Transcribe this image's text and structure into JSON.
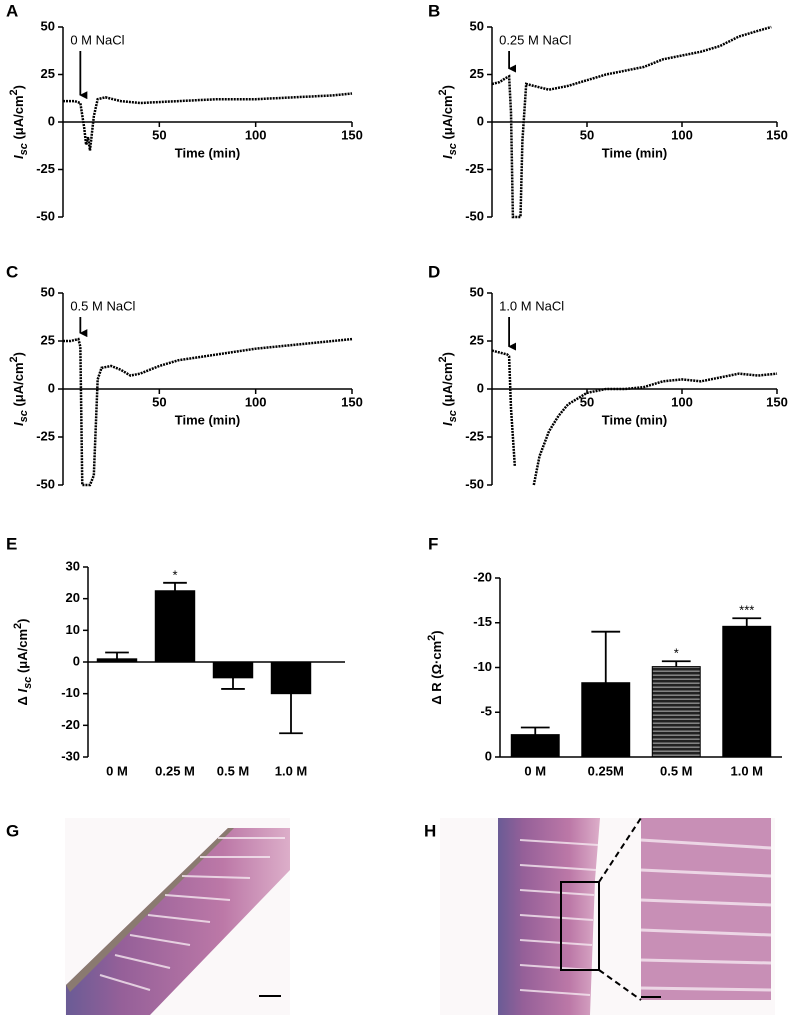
{
  "chart_data": [
    {
      "type": "line",
      "panel": "A",
      "x": [
        0,
        3,
        6,
        9,
        11,
        12,
        13,
        14,
        16,
        18,
        22,
        30,
        40,
        60,
        80,
        100,
        120,
        140,
        150
      ],
      "values": [
        11,
        11,
        11,
        10,
        -3,
        -12,
        -8,
        -15,
        3,
        12,
        13,
        11,
        10,
        11,
        12,
        12,
        13,
        14,
        15
      ],
      "color": "#000000",
      "xlim": [
        0,
        150
      ],
      "xticks": [
        50,
        100,
        150
      ],
      "ylim": [
        -50,
        50
      ],
      "yticks": [
        -50,
        -25,
        0,
        25,
        50
      ],
      "xlabel": "Time (min)",
      "ylabel": [
        {
          "text": "I",
          "style": "italic"
        },
        {
          "text": "sc",
          "style": "sub"
        },
        {
          "text": " (μA/cm"
        },
        {
          "text": "2",
          "style": "sup"
        },
        {
          "text": ")"
        }
      ],
      "annotation": {
        "text": "0 M NaCl",
        "x": 9,
        "y": 12
      }
    },
    {
      "type": "line",
      "panel": "B",
      "x": [
        0,
        4,
        7,
        9,
        10,
        11,
        13,
        15,
        16,
        18,
        22,
        30,
        40,
        50,
        60,
        70,
        80,
        90,
        100,
        110,
        120,
        130,
        140,
        147
      ],
      "values": [
        20,
        21,
        23,
        24,
        5,
        -50,
        -50,
        -50,
        -10,
        20,
        19,
        17,
        19,
        22,
        25,
        27,
        29,
        33,
        35,
        37,
        40,
        45,
        48,
        50
      ],
      "color": "#000000",
      "xlim": [
        0,
        150
      ],
      "xticks": [
        50,
        100,
        150
      ],
      "ylim": [
        -50,
        50
      ],
      "yticks": [
        -50,
        -25,
        0,
        25,
        50
      ],
      "xlabel": "Time (min)",
      "ylabel": [
        {
          "text": "I",
          "style": "italic"
        },
        {
          "text": "sc",
          "style": "sub"
        },
        {
          "text": " (μA/cm"
        },
        {
          "text": "2",
          "style": "sup"
        },
        {
          "text": ")"
        }
      ],
      "annotation": {
        "text": "0.25 M NaCl",
        "x": 9,
        "y": 26
      }
    },
    {
      "type": "line",
      "panel": "C",
      "x": [
        0,
        4,
        8,
        9,
        10,
        12,
        14,
        16,
        17,
        18,
        20,
        25,
        30,
        35,
        40,
        50,
        60,
        80,
        100,
        120,
        140,
        150
      ],
      "values": [
        25,
        25,
        26,
        22,
        -50,
        -50,
        -50,
        -45,
        -20,
        5,
        11,
        12,
        10,
        7,
        8,
        12,
        15,
        18,
        21,
        23,
        25,
        26
      ],
      "color": "#000000",
      "xlim": [
        0,
        150
      ],
      "xticks": [
        50,
        100,
        150
      ],
      "ylim": [
        -50,
        50
      ],
      "yticks": [
        -50,
        -25,
        0,
        25,
        50
      ],
      "xlabel": "Time (min)",
      "ylabel": [
        {
          "text": "I",
          "style": "italic"
        },
        {
          "text": "sc",
          "style": "sub"
        },
        {
          "text": " (μA/cm"
        },
        {
          "text": "2",
          "style": "sup"
        },
        {
          "text": ")"
        }
      ],
      "annotation": {
        "text": "0.5 M NaCl",
        "x": 9,
        "y": 27
      }
    },
    {
      "type": "line",
      "panel": "D",
      "x": [
        0,
        4,
        8,
        9,
        10,
        12,
        20,
        22,
        25,
        30,
        35,
        40,
        50,
        60,
        70,
        80,
        90,
        100,
        110,
        120,
        130,
        140,
        150
      ],
      "values": [
        20,
        19,
        18,
        17,
        -10,
        -40,
        null,
        -50,
        -35,
        -22,
        -14,
        -8,
        -2,
        0,
        0,
        1,
        4,
        5,
        4,
        6,
        8,
        7,
        8
      ],
      "color": "#000000",
      "xlim": [
        0,
        150
      ],
      "xticks": [
        50,
        100,
        150
      ],
      "ylim": [
        -50,
        50
      ],
      "yticks": [
        -50,
        -25,
        0,
        25,
        50
      ],
      "xlabel": "Time (min)",
      "ylabel": [
        {
          "text": "I",
          "style": "italic"
        },
        {
          "text": "sc",
          "style": "sub"
        },
        {
          "text": " (μA/cm"
        },
        {
          "text": "2",
          "style": "sup"
        },
        {
          "text": ")"
        }
      ],
      "annotation": {
        "text": "1.0 M NaCl",
        "x": 9,
        "y": 20
      }
    },
    {
      "type": "bar",
      "panel": "E",
      "categories": [
        "0 M",
        "0.25 M",
        "0.5 M",
        "1.0 M"
      ],
      "values": [
        1,
        22.5,
        -5,
        -10
      ],
      "errors": [
        2,
        2.5,
        3.5,
        12.5
      ],
      "significance": [
        null,
        "*",
        null,
        null
      ],
      "color": "#000000",
      "patterns": [
        "solid",
        "solid",
        "solid",
        "solid"
      ],
      "ylim": [
        -30,
        30
      ],
      "yticks": [
        -30,
        -20,
        -10,
        0,
        10,
        20,
        30
      ],
      "ylabel": [
        {
          "text": "Δ "
        },
        {
          "text": "I",
          "style": "italic"
        },
        {
          "text": "sc",
          "style": "sub"
        },
        {
          "text": " (μA/cm"
        },
        {
          "text": "2",
          "style": "sup"
        },
        {
          "text": ")"
        }
      ]
    },
    {
      "type": "bar",
      "panel": "F",
      "categories": [
        "0 M",
        "0.25M",
        "0.5 M",
        "1.0 M"
      ],
      "values": [
        -2.5,
        -8.3,
        -10.1,
        -14.6
      ],
      "errors": [
        0.8,
        5.7,
        0.6,
        0.9
      ],
      "significance": [
        null,
        null,
        "*",
        "***"
      ],
      "color": "#000000",
      "patterns": [
        "solid",
        "solid",
        "striped",
        "solid"
      ],
      "ylim": [
        0,
        -20
      ],
      "yticks": [
        0,
        -5,
        -10,
        -15,
        -20
      ],
      "ylabel": [
        {
          "text": "Δ R (Ω·cm"
        },
        {
          "text": "2",
          "style": "sup"
        },
        {
          "text": ")"
        }
      ]
    }
  ],
  "images": [
    {
      "panel": "G"
    },
    {
      "panel": "H"
    }
  ]
}
